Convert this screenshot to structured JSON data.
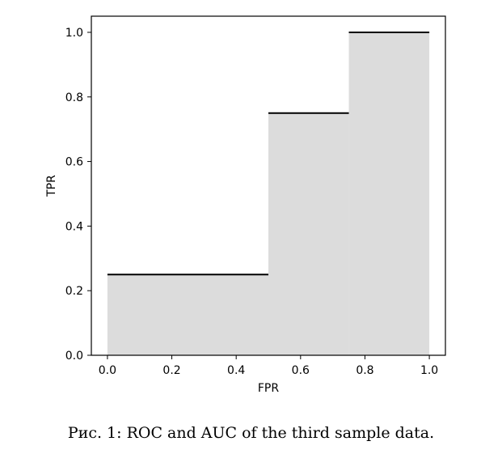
{
  "chart_data": {
    "type": "area",
    "step": "post",
    "x": [
      0.0,
      0.5,
      0.75,
      1.0
    ],
    "y": [
      0.25,
      0.75,
      1.0,
      1.0
    ],
    "fill_color": "#dcdcdc",
    "line_color": "#000000",
    "xlabel": "FPR",
    "ylabel": "TPR",
    "xlim": [
      -0.05,
      1.05
    ],
    "ylim": [
      0.0,
      1.05
    ],
    "xticks": [
      "0.0",
      "0.2",
      "0.4",
      "0.6",
      "0.8",
      "1.0"
    ],
    "yticks": [
      "0.0",
      "0.2",
      "0.4",
      "0.6",
      "0.8",
      "1.0"
    ],
    "grid": false
  },
  "caption": "Рис. 1: ROC and AUC of the third sample data."
}
